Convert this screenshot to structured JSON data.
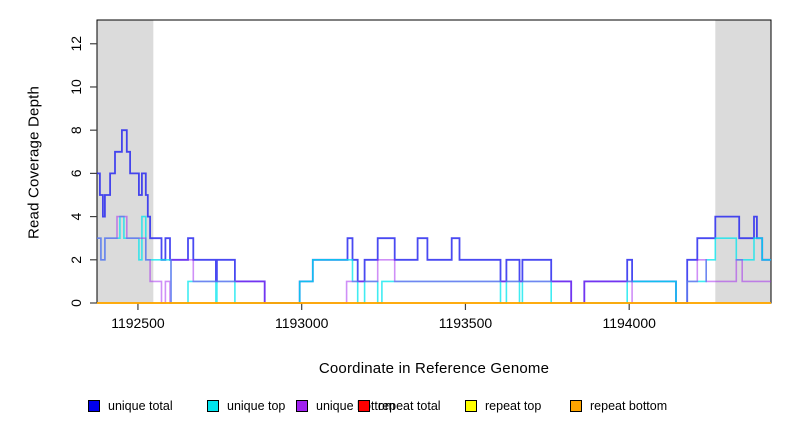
{
  "figure": {
    "background": "#FFFFFF",
    "accent_gray_band": "#DBDBDB"
  },
  "chart_data": {
    "type": "line",
    "subtype": "step",
    "title": "",
    "xlabel": "Coordinate in Reference Genome",
    "ylabel": "Read Coverage Depth",
    "xlim": [
      1192375,
      1194433
    ],
    "ylim": [
      0,
      13.1
    ],
    "x_ticks": [
      1192500,
      1193000,
      1193500,
      1194000
    ],
    "y_ticks": [
      0,
      2,
      4,
      6,
      8,
      10,
      12
    ],
    "grid": false,
    "legend_position": "bottom",
    "shaded_regions": [
      {
        "x0": 1192375,
        "x1": 1192547,
        "color": "#DBDBDB"
      },
      {
        "x0": 1194263,
        "x1": 1194433,
        "color": "#DBDBDB"
      }
    ],
    "series": [
      {
        "name": "unique total",
        "color": "#2929F0",
        "legend_color": "#0000EE",
        "opacity": 0.85,
        "width": 1.8,
        "steps": [
          [
            1192375,
            6
          ],
          [
            1192384,
            5
          ],
          [
            1192393,
            4
          ],
          [
            1192399,
            5
          ],
          [
            1192415,
            6
          ],
          [
            1192430,
            7
          ],
          [
            1192451,
            8
          ],
          [
            1192466,
            7
          ],
          [
            1192476,
            6
          ],
          [
            1192503,
            5
          ],
          [
            1192512,
            6
          ],
          [
            1192524,
            5
          ],
          [
            1192530,
            4
          ],
          [
            1192537,
            3
          ],
          [
            1192572,
            2
          ],
          [
            1192584,
            3
          ],
          [
            1192598,
            2
          ],
          [
            1192653,
            3
          ],
          [
            1192669,
            2
          ],
          [
            1192738,
            1
          ],
          [
            1192741,
            2
          ],
          [
            1192796,
            1
          ],
          [
            1192887,
            0
          ],
          [
            1192994,
            1
          ],
          [
            1193034,
            2
          ],
          [
            1193140,
            3
          ],
          [
            1193155,
            2
          ],
          [
            1193171,
            1
          ],
          [
            1193192,
            2
          ],
          [
            1193232,
            3
          ],
          [
            1193284,
            2
          ],
          [
            1193354,
            3
          ],
          [
            1193384,
            2
          ],
          [
            1193458,
            3
          ],
          [
            1193482,
            2
          ],
          [
            1193607,
            1
          ],
          [
            1193625,
            2
          ],
          [
            1193665,
            1
          ],
          [
            1193674,
            2
          ],
          [
            1193762,
            1
          ],
          [
            1193823,
            0
          ],
          [
            1193863,
            1
          ],
          [
            1193994,
            2
          ],
          [
            1194009,
            1
          ],
          [
            1194143,
            0
          ],
          [
            1194177,
            2
          ],
          [
            1194208,
            3
          ],
          [
            1194263,
            4
          ],
          [
            1194336,
            3
          ],
          [
            1194381,
            4
          ],
          [
            1194390,
            3
          ],
          [
            1194406,
            2
          ]
        ]
      },
      {
        "name": "unique top",
        "color": "#00E5EE",
        "legend_color": "#00E5EE",
        "opacity": 0.75,
        "width": 1.6,
        "steps": [
          [
            1192375,
            3
          ],
          [
            1192387,
            2
          ],
          [
            1192399,
            3
          ],
          [
            1192445,
            4
          ],
          [
            1192457,
            3
          ],
          [
            1192503,
            2
          ],
          [
            1192512,
            4
          ],
          [
            1192524,
            2
          ],
          [
            1192601,
            0
          ],
          [
            1192653,
            1
          ],
          [
            1192738,
            0
          ],
          [
            1192741,
            1
          ],
          [
            1192796,
            0
          ],
          [
            1192994,
            1
          ],
          [
            1193034,
            2
          ],
          [
            1193155,
            1
          ],
          [
            1193171,
            0
          ],
          [
            1193192,
            1
          ],
          [
            1193232,
            0
          ],
          [
            1193245,
            1
          ],
          [
            1193354,
            1
          ],
          [
            1193607,
            0
          ],
          [
            1193625,
            1
          ],
          [
            1193665,
            0
          ],
          [
            1193674,
            1
          ],
          [
            1193762,
            0
          ],
          [
            1193994,
            1
          ],
          [
            1194143,
            0
          ],
          [
            1194177,
            1
          ],
          [
            1194235,
            2
          ],
          [
            1194263,
            3
          ],
          [
            1194327,
            2
          ],
          [
            1194381,
            3
          ],
          [
            1194406,
            2
          ]
        ]
      },
      {
        "name": "unique bottom",
        "color": "#A020F0",
        "legend_color": "#A020F0",
        "opacity": 0.5,
        "width": 1.6,
        "steps": [
          [
            1192375,
            3
          ],
          [
            1192387,
            2
          ],
          [
            1192399,
            3
          ],
          [
            1192436,
            4
          ],
          [
            1192466,
            3
          ],
          [
            1192524,
            2
          ],
          [
            1192537,
            1
          ],
          [
            1192572,
            0
          ],
          [
            1192584,
            1
          ],
          [
            1192598,
            0
          ],
          [
            1192601,
            2
          ],
          [
            1192669,
            1
          ],
          [
            1192887,
            0
          ],
          [
            1193137,
            1
          ],
          [
            1193232,
            2
          ],
          [
            1193284,
            1
          ],
          [
            1193823,
            0
          ],
          [
            1193863,
            1
          ],
          [
            1194009,
            0
          ],
          [
            1194177,
            1
          ],
          [
            1194208,
            2
          ],
          [
            1194235,
            1
          ],
          [
            1194327,
            2
          ],
          [
            1194345,
            1
          ]
        ]
      },
      {
        "name": "repeat total",
        "color": "#EE0000",
        "legend_color": "#FF0000",
        "opacity": 1,
        "width": 1.4,
        "steps": [
          [
            1192375,
            0
          ]
        ]
      },
      {
        "name": "repeat top",
        "color": "#FFFF00",
        "legend_color": "#FFFF00",
        "opacity": 1,
        "width": 1.4,
        "steps": [
          [
            1192375,
            0
          ]
        ]
      },
      {
        "name": "repeat bottom",
        "color": "#FFA500",
        "legend_color": "#FFA500",
        "opacity": 1,
        "width": 1.5,
        "steps": [
          [
            1192375,
            0
          ]
        ]
      }
    ]
  },
  "legend": {
    "items": [
      {
        "label": "unique total",
        "color": "#0000EE"
      },
      {
        "label": "unique top",
        "color": "#00E5EE"
      },
      {
        "label": "unique bottom",
        "color": "#A020F0"
      },
      {
        "label": "repeat total",
        "color": "#FF0000"
      },
      {
        "label": "repeat top",
        "color": "#FFFF00"
      },
      {
        "label": "repeat bottom",
        "color": "#FFA500"
      }
    ]
  }
}
